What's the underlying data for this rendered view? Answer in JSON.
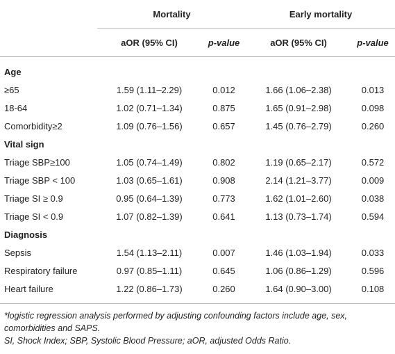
{
  "header": {
    "groups": [
      "Mortality",
      "Early mortality"
    ],
    "columns": [
      "aOR (95% CI)",
      "p-value",
      "aOR (95% CI)",
      "p-value"
    ]
  },
  "sections": [
    {
      "title": "Age",
      "rows": [
        [
          "≥65",
          "1.59 (1.11–2.29)",
          "0.012",
          "1.66 (1.06–2.38)",
          "0.013"
        ],
        [
          "18-64",
          "1.02 (0.71–1.34)",
          "0.875",
          "1.65 (0.91–2.98)",
          "0.098"
        ],
        [
          "Comorbidity≥2",
          "1.09 (0.76–1.56)",
          "0.657",
          "1.45 (0.76–2.79)",
          "0.260"
        ]
      ]
    },
    {
      "title": "Vital sign",
      "rows": [
        [
          "Triage SBP≥100",
          "1.05 (0.74–1.49)",
          "0.802",
          "1.19 (0.65–2.17)",
          "0.572"
        ],
        [
          "Triage SBP < 100",
          "1.03 (0.65–1.61)",
          "0.908",
          "2.14 (1.21–3.77)",
          "0.009"
        ],
        [
          "Triage SI ≥ 0.9",
          "0.95 (0.64–1.39)",
          "0.773",
          "1.62 (1.01–2.60)",
          "0.038"
        ],
        [
          "Triage SI < 0.9",
          "1.07 (0.82–1.39)",
          "0.641",
          "1.13 (0.73–1.74)",
          "0.594"
        ]
      ]
    },
    {
      "title": "Diagnosis",
      "rows": [
        [
          "Sepsis",
          "1.54 (1.13–2.11)",
          "0.007",
          "1.46 (1.03–1.94)",
          "0.033"
        ],
        [
          "Respiratory failure",
          "0.97 (0.85–1.11)",
          "0.645",
          "1.06 (0.86–1.29)",
          "0.596"
        ],
        [
          "Heart failure",
          "1.22 (0.86–1.73)",
          "0.260",
          "1.64 (0.90–3.00)",
          "0.108"
        ]
      ]
    }
  ],
  "footnotes": [
    "*logistic regression analysis performed by adjusting confounding factors include age, sex, comorbidities and SAPS.",
    "SI, Shock Index; SBP, Systolic Blood Pressure; aOR, adjusted Odds Ratio."
  ]
}
